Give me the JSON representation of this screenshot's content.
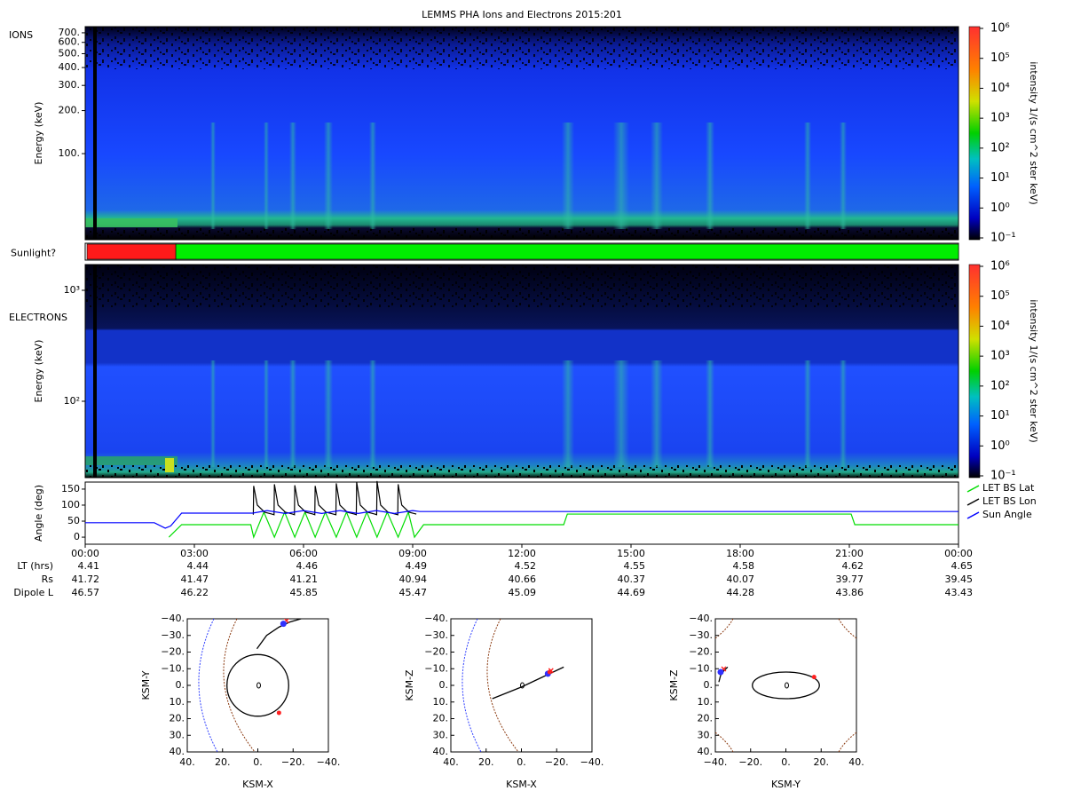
{
  "chart_data": [
    {
      "type": "heatmap",
      "title": "LEMMS PHA Ions and Electrons  2015:201",
      "label": "IONS",
      "ylabel": "Energy (keV)",
      "yscale": "log",
      "ylim": [
        25,
        773
      ],
      "yticks": [
        {
          "value": 700,
          "label": "700."
        },
        {
          "value": 600,
          "label": "600."
        },
        {
          "value": 500,
          "label": "500."
        },
        {
          "value": 400,
          "label": "400."
        },
        {
          "value": 300,
          "label": "300."
        },
        {
          "value": 200,
          "label": "200."
        },
        {
          "value": 100,
          "label": "100."
        }
      ],
      "colorbar": {
        "label": "intensity 1/(s cm^2 ster keV)",
        "zscale": "log",
        "zlim": [
          0.1,
          1000000
        ],
        "zticks": [
          {
            "value": 1000000,
            "label": "10⁶"
          },
          {
            "value": 100000,
            "label": "10⁵"
          },
          {
            "value": 10000,
            "label": "10⁴"
          },
          {
            "value": 1000,
            "label": "10³"
          },
          {
            "value": 100,
            "label": "10²"
          },
          {
            "value": 10,
            "label": "10¹"
          },
          {
            "value": 1,
            "label": "10⁰"
          },
          {
            "value": 0.1,
            "label": "10⁻¹"
          }
        ]
      }
    },
    {
      "type": "timeline",
      "label": "Sunlight?",
      "xlim": [
        0,
        24
      ],
      "segments": [
        {
          "start": 0.05,
          "end": 2.49,
          "color": "#ff1a1a"
        },
        {
          "start": 2.49,
          "end": 24,
          "color": "#00ee00"
        }
      ]
    },
    {
      "type": "heatmap",
      "label": "ELECTRONS",
      "ylabel": "Energy (keV)",
      "yscale": "log",
      "ylim": [
        20.5,
        1706
      ],
      "yticks": [
        {
          "value": 1000,
          "label": "10³"
        },
        {
          "value": 100,
          "label": "10²"
        }
      ],
      "colorbar": {
        "label": "intensity 1/(s cm^2 ster keV)",
        "zscale": "log",
        "zlim": [
          0.1,
          1000000
        ],
        "zticks": [
          {
            "value": 1000000,
            "label": "10⁶"
          },
          {
            "value": 100000,
            "label": "10⁵"
          },
          {
            "value": 10000,
            "label": "10⁴"
          },
          {
            "value": 1000,
            "label": "10³"
          },
          {
            "value": 100,
            "label": "10²"
          },
          {
            "value": 10,
            "label": "10¹"
          },
          {
            "value": 1,
            "label": "10⁰"
          },
          {
            "value": 0.1,
            "label": "10⁻¹"
          }
        ]
      }
    },
    {
      "type": "line",
      "ylabel": "Angle (deg)",
      "xlim": [
        0,
        24
      ],
      "ylim": [
        -22,
        172
      ],
      "yticks": [
        0,
        50,
        100,
        150
      ],
      "xticks": [
        {
          "value": 0,
          "label": "00:00"
        },
        {
          "value": 3,
          "label": "03:00"
        },
        {
          "value": 6,
          "label": "06:00"
        },
        {
          "value": 9,
          "label": "09:00"
        },
        {
          "value": 12,
          "label": "12:00"
        },
        {
          "value": 15,
          "label": "15:00"
        },
        {
          "value": 18,
          "label": "18:00"
        },
        {
          "value": 21,
          "label": "21:00"
        },
        {
          "value": 24,
          "label": "00:00"
        }
      ],
      "legend": "right",
      "series": [
        {
          "name": "LET BS Lat",
          "color": "#00dd00",
          "x": [
            2.3,
            2.65,
            4.55,
            4.63,
            4.91,
            5.2,
            5.48,
            5.76,
            6.04,
            6.32,
            6.6,
            6.9,
            7.18,
            7.46,
            7.74,
            8.02,
            8.3,
            8.6,
            8.88,
            9.05,
            9.3,
            13.15,
            13.25,
            21.05,
            21.15,
            24
          ],
          "values": [
            0,
            39,
            39,
            0,
            78,
            0,
            78,
            0,
            78,
            0,
            78,
            0,
            78,
            0,
            78,
            0,
            78,
            0,
            78,
            0,
            39,
            39,
            72,
            72,
            39,
            39
          ]
        },
        {
          "name": "LET BS Lon",
          "color": "#000000",
          "x": [
            4.62,
            4.63,
            4.73,
            4.93,
            5.13,
            5.19,
            5.2,
            5.3,
            5.5,
            5.7,
            5.75,
            5.76,
            5.86,
            6.06,
            6.26,
            6.31,
            6.32,
            6.42,
            6.62,
            6.82,
            6.89,
            6.9,
            7.0,
            7.2,
            7.4,
            7.45,
            7.46,
            7.56,
            7.76,
            7.96,
            8.01,
            8.02,
            8.12,
            8.32,
            8.52,
            8.59,
            8.6,
            8.7,
            8.9,
            9.1
          ],
          "values": [
            70,
            160,
            100,
            78,
            72,
            70,
            165,
            100,
            78,
            72,
            70,
            162,
            100,
            78,
            72,
            70,
            160,
            100,
            78,
            72,
            70,
            168,
            100,
            78,
            72,
            70,
            172,
            100,
            78,
            72,
            70,
            175,
            100,
            78,
            72,
            70,
            165,
            100,
            78,
            72
          ]
        },
        {
          "name": "Sun Angle",
          "color": "#0000ff",
          "x": [
            0,
            1.9,
            2.2,
            2.35,
            2.65,
            4.6,
            5.0,
            5.5,
            6.0,
            6.5,
            7.0,
            7.5,
            8.0,
            8.5,
            9.0,
            9.2,
            24
          ],
          "values": [
            45,
            45,
            28,
            35,
            75,
            75,
            83,
            74,
            83,
            74,
            83,
            74,
            83,
            74,
            83,
            80,
            80
          ]
        }
      ],
      "rows": [
        {
          "label": "LT (hrs)",
          "values": [
            4.41,
            4.44,
            4.46,
            4.49,
            4.52,
            4.55,
            4.58,
            4.62,
            4.65
          ]
        },
        {
          "label": "Rs",
          "values": [
            41.72,
            41.47,
            41.21,
            40.94,
            40.66,
            40.37,
            40.07,
            39.77,
            39.45
          ]
        },
        {
          "label": "Dipole L",
          "values": [
            46.57,
            46.22,
            45.85,
            45.47,
            45.09,
            44.69,
            44.28,
            43.86,
            43.43
          ]
        }
      ]
    },
    {
      "type": "orbit",
      "xlabel": "KSM-X",
      "ylabel": "KSM-Y",
      "xlim": [
        40,
        -40
      ],
      "ylim": [
        40,
        -40
      ],
      "xticks": [
        {
          "value": 40,
          "label": "40."
        },
        {
          "value": 20,
          "label": "20."
        },
        {
          "value": 0,
          "label": "0."
        },
        {
          "value": -20,
          "label": "−20."
        },
        {
          "value": -40,
          "label": "−40."
        }
      ],
      "yticks": [
        {
          "value": -40,
          "label": "−40."
        },
        {
          "value": -30,
          "label": "−30."
        },
        {
          "value": -20,
          "label": "−20."
        },
        {
          "value": -10,
          "label": "−10."
        },
        {
          "value": 0,
          "label": "0."
        },
        {
          "value": 10,
          "label": "10."
        },
        {
          "value": 20,
          "label": "20."
        },
        {
          "value": 30,
          "label": "30."
        },
        {
          "value": 40,
          "label": "40."
        }
      ],
      "trajectory": {
        "x": [
          0.5,
          -5,
          -12,
          -18,
          -24.5
        ],
        "y": [
          -22,
          -30,
          -35,
          -38,
          -40
        ]
      },
      "spacecraft": {
        "x": -14.5,
        "y": -37
      },
      "moon": {
        "x": -12,
        "y": 16.5
      },
      "moon_orbit": {
        "rx": 17.5,
        "ry": 18.5
      }
    },
    {
      "type": "orbit",
      "xlabel": "KSM-X",
      "ylabel": "KSM-Z",
      "xlim": [
        40,
        -40
      ],
      "ylim": [
        40,
        -40
      ],
      "xticks": [
        {
          "value": 40,
          "label": "40."
        },
        {
          "value": 20,
          "label": "20."
        },
        {
          "value": 0,
          "label": "0."
        },
        {
          "value": -20,
          "label": "−20."
        },
        {
          "value": -40,
          "label": "−40."
        }
      ],
      "yticks": [
        {
          "value": -40,
          "label": "−40."
        },
        {
          "value": -30,
          "label": "−30."
        },
        {
          "value": -20,
          "label": "−20."
        },
        {
          "value": -10,
          "label": "−10."
        },
        {
          "value": 0,
          "label": "0."
        },
        {
          "value": 10,
          "label": "10."
        },
        {
          "value": 20,
          "label": "20."
        },
        {
          "value": 30,
          "label": "30."
        },
        {
          "value": 40,
          "label": "40."
        }
      ],
      "trajectory": {
        "x": [
          16.5,
          0,
          -12,
          -24
        ],
        "y": [
          8,
          1,
          -5,
          -11
        ]
      },
      "spacecraft": {
        "x": -15,
        "y": -7
      },
      "moon": {
        "x": -16,
        "y": -8
      }
    },
    {
      "type": "orbit",
      "xlabel": "KSM-Y",
      "ylabel": "KSM-Z",
      "xlim": [
        -40,
        40
      ],
      "ylim": [
        40,
        -40
      ],
      "xticks": [
        {
          "value": -40,
          "label": "−40."
        },
        {
          "value": -20,
          "label": "−20."
        },
        {
          "value": 0,
          "label": "0."
        },
        {
          "value": 20,
          "label": "20."
        },
        {
          "value": 40,
          "label": "40."
        }
      ],
      "yticks": [
        {
          "value": -40,
          "label": "−40."
        },
        {
          "value": -30,
          "label": "−30."
        },
        {
          "value": -20,
          "label": "−20."
        },
        {
          "value": -10,
          "label": "−10."
        },
        {
          "value": 0,
          "label": "0."
        },
        {
          "value": 10,
          "label": "10."
        },
        {
          "value": 20,
          "label": "20."
        },
        {
          "value": 30,
          "label": "30."
        },
        {
          "value": 40,
          "label": "40."
        }
      ],
      "trajectory": {
        "x": [
          -38,
          -37,
          -35,
          -33
        ],
        "y": [
          -2,
          -6,
          -9,
          -11
        ]
      },
      "spacecraft": {
        "x": -37,
        "y": -8
      },
      "moon": {
        "x": 16,
        "y": -5
      },
      "moon_orbit": {
        "rx": 19,
        "ry": 8
      }
    }
  ]
}
